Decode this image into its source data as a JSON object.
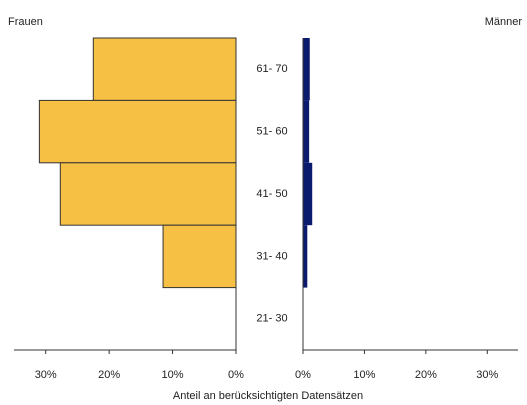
{
  "chart_data": {
    "type": "pyramid",
    "categories": [
      "61- 70",
      "51- 60",
      "41- 50",
      "31- 40",
      "21- 30"
    ],
    "series": [
      {
        "name": "Frauen",
        "color": "#f5c044",
        "values": [
          22.5,
          31,
          27.7,
          11.5,
          0
        ]
      },
      {
        "name": "Männer",
        "color": "#0b1b6e",
        "values": [
          1.1,
          1,
          1.5,
          0.7,
          0
        ]
      }
    ],
    "xlim": [
      0,
      35
    ],
    "xticks": [
      {
        "value": 0,
        "label": "0%"
      },
      {
        "value": 10,
        "label": "10%"
      },
      {
        "value": 20,
        "label": "20%"
      },
      {
        "value": 30,
        "label": "30%"
      }
    ],
    "x_label": "Anteil an berücksichtigten Datensätzen"
  }
}
